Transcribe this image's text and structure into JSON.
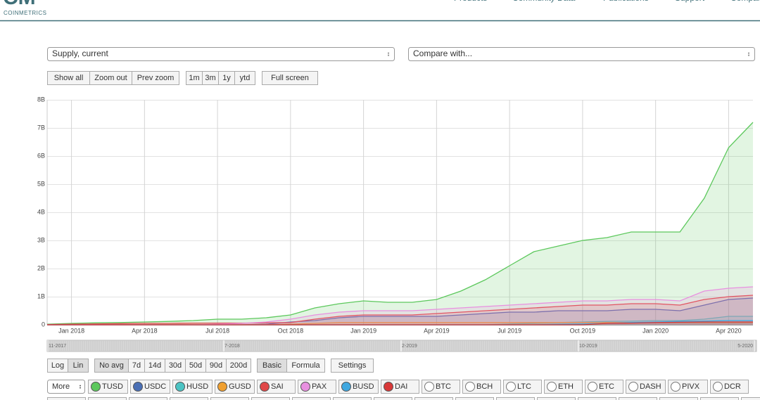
{
  "header": {
    "logo_mark": "CM",
    "logo_text": "COINMETRICS",
    "nav": [
      "Products",
      "Community Data",
      "Publications",
      "Support",
      "Company"
    ]
  },
  "controls": {
    "metric": "Supply, current",
    "compare": "Compare with...",
    "zoom": [
      "Show all",
      "Zoom out",
      "Prev zoom"
    ],
    "ranges": [
      "1m",
      "3m",
      "1y",
      "ytd"
    ],
    "fullscreen": "Full screen",
    "scale": [
      "Log",
      "Lin"
    ],
    "averages": [
      "No avg",
      "7d",
      "14d",
      "30d",
      "50d",
      "90d",
      "200d"
    ],
    "modes": [
      "Basic",
      "Formula"
    ],
    "settings": "Settings",
    "more": "More",
    "other_assets": [
      "BTC",
      "BCH",
      "LTC",
      "ETH",
      "ETC",
      "DASH",
      "PIVX",
      "DCR"
    ]
  },
  "navigator_labels": [
    "11-2017",
    "7-2018",
    "2-2019",
    "10-2019",
    "5-2020"
  ],
  "chart_data": {
    "type": "area",
    "log_scale": false,
    "grid": true,
    "x": [
      "2017-12",
      "2018-01",
      "2018-02",
      "2018-03",
      "2018-04",
      "2018-05",
      "2018-06",
      "2018-07",
      "2018-08",
      "2018-09",
      "2018-10",
      "2018-11",
      "2018-12",
      "2019-01",
      "2019-02",
      "2019-03",
      "2019-04",
      "2019-05",
      "2019-06",
      "2019-07",
      "2019-08",
      "2019-09",
      "2019-10",
      "2019-11",
      "2019-12",
      "2020-01",
      "2020-02",
      "2020-03",
      "2020-04",
      "2020-05"
    ],
    "xlim": [
      "2017-12",
      "2020-05"
    ],
    "xticks": [
      {
        "value": "2018-01",
        "label": "Jan 2018"
      },
      {
        "value": "2018-04",
        "label": "Apr 2018"
      },
      {
        "value": "2018-07",
        "label": "Jul 2018"
      },
      {
        "value": "2018-10",
        "label": "Oct 2018"
      },
      {
        "value": "2019-01",
        "label": "Jan 2019"
      },
      {
        "value": "2019-04",
        "label": "Apr 2019"
      },
      {
        "value": "2019-07",
        "label": "Jul 2019"
      },
      {
        "value": "2019-10",
        "label": "Oct 2019"
      },
      {
        "value": "2020-01",
        "label": "Jan 2020"
      },
      {
        "value": "2020-04",
        "label": "Apr 2020"
      }
    ],
    "ylim": [
      0,
      8
    ],
    "yticks": [
      0,
      {
        "value": 1,
        "label": "1B"
      },
      {
        "value": 2,
        "label": "2B"
      },
      {
        "value": 3,
        "label": "3B"
      },
      {
        "value": 4,
        "label": "4B"
      },
      {
        "value": 5,
        "label": "5B"
      },
      {
        "value": 6,
        "label": "6B"
      },
      {
        "value": 7,
        "label": "7B"
      },
      {
        "value": 8,
        "label": "8B"
      }
    ],
    "series": [
      {
        "name": "TUSD",
        "color": "#5cc85c",
        "values": [
          0.02,
          0.05,
          0.07,
          0.08,
          0.1,
          0.12,
          0.15,
          0.2,
          0.2,
          0.25,
          0.35,
          0.6,
          0.75,
          0.85,
          0.8,
          0.8,
          0.9,
          1.2,
          1.6,
          2.1,
          2.6,
          2.8,
          3.0,
          3.1,
          3.3,
          3.3,
          3.3,
          4.5,
          6.3,
          7.2
        ]
      },
      {
        "name": "USDC",
        "color": "#4a6fb5",
        "values": [
          0,
          0,
          0,
          0,
          0,
          0,
          0,
          0,
          0,
          0.02,
          0.1,
          0.15,
          0.25,
          0.3,
          0.3,
          0.3,
          0.3,
          0.35,
          0.4,
          0.45,
          0.45,
          0.5,
          0.5,
          0.5,
          0.55,
          0.55,
          0.5,
          0.7,
          0.9,
          0.95
        ]
      },
      {
        "name": "HUSD",
        "color": "#4cc4c4",
        "values": [
          0,
          0,
          0,
          0,
          0,
          0,
          0,
          0,
          0,
          0,
          0,
          0,
          0,
          0,
          0,
          0,
          0,
          0,
          0,
          0.03,
          0.05,
          0.08,
          0.1,
          0.12,
          0.13,
          0.15,
          0.15,
          0.2,
          0.3,
          0.3
        ]
      },
      {
        "name": "GUSD",
        "color": "#f0a030",
        "values": [
          0,
          0,
          0,
          0,
          0,
          0,
          0,
          0,
          0,
          0,
          0.02,
          0.05,
          0.08,
          0.08,
          0.08,
          0.08,
          0.08,
          0.08,
          0.08,
          0.08,
          0.08,
          0.08,
          0.08,
          0.08,
          0.08,
          0.08,
          0.08,
          0.08,
          0.08,
          0.08
        ]
      },
      {
        "name": "SAI",
        "color": "#e04848",
        "values": [
          0.01,
          0.02,
          0.03,
          0.04,
          0.05,
          0.05,
          0.06,
          0.06,
          0.06,
          0.07,
          0.08,
          0.2,
          0.3,
          0.35,
          0.35,
          0.35,
          0.4,
          0.45,
          0.5,
          0.55,
          0.6,
          0.65,
          0.7,
          0.7,
          0.75,
          0.75,
          0.7,
          0.9,
          1.0,
          1.05
        ]
      },
      {
        "name": "PAX",
        "color": "#e890e0",
        "values": [
          0,
          0,
          0,
          0,
          0,
          0,
          0,
          0.02,
          0.05,
          0.1,
          0.2,
          0.35,
          0.45,
          0.5,
          0.5,
          0.5,
          0.55,
          0.6,
          0.65,
          0.7,
          0.75,
          0.8,
          0.85,
          0.85,
          0.9,
          0.9,
          0.85,
          1.2,
          1.3,
          1.35
        ]
      },
      {
        "name": "BUSD",
        "color": "#40a8e0",
        "values": [
          0,
          0,
          0,
          0,
          0,
          0,
          0,
          0,
          0,
          0,
          0,
          0,
          0,
          0,
          0,
          0,
          0,
          0,
          0,
          0,
          0,
          0.02,
          0.03,
          0.05,
          0.08,
          0.1,
          0.12,
          0.13,
          0.15,
          0.15
        ]
      },
      {
        "name": "DAI",
        "color": "#d83838",
        "values": [
          0,
          0,
          0,
          0,
          0,
          0,
          0,
          0,
          0,
          0,
          0,
          0,
          0,
          0,
          0,
          0,
          0,
          0,
          0,
          0,
          0,
          0,
          0,
          0.05,
          0.06,
          0.08,
          0.09,
          0.1,
          0.1,
          0.1
        ]
      }
    ]
  }
}
